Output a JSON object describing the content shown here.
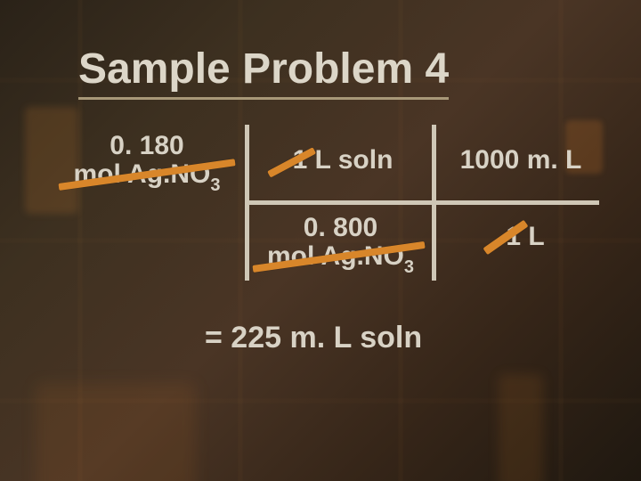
{
  "slide": {
    "title": "Sample Problem 4",
    "background_gradient": [
      "#2a2218",
      "#3d3020",
      "#4a3525",
      "#352518",
      "#1f1810"
    ],
    "text_color": "#d8d2c5",
    "underline_color": "#a89878",
    "divider_color": "#cfc7b6",
    "strike_color": "#d8862a",
    "title_fontsize": 48,
    "cell_fontsize": 30,
    "result_fontsize": 34
  },
  "calc": {
    "top_left_line1": "0. 180",
    "top_left_line2": "mol Ag.NO",
    "top_left_sub": "3",
    "top_mid": "1 L soln",
    "top_right": "1000 m. L",
    "bot_mid_line1": "0. 800",
    "bot_mid_line2": "mol Ag.NO",
    "bot_mid_sub": "3",
    "bot_right": "1 L"
  },
  "result": {
    "text": "= 225 m. L soln"
  }
}
